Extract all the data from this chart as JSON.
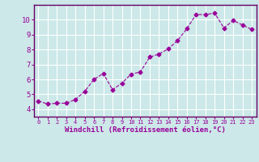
{
  "x": [
    0,
    1,
    2,
    3,
    4,
    5,
    6,
    7,
    8,
    9,
    10,
    11,
    12,
    13,
    14,
    15,
    16,
    17,
    18,
    19,
    20,
    21,
    22,
    23
  ],
  "y": [
    4.55,
    4.35,
    4.4,
    4.4,
    4.65,
    5.2,
    6.0,
    6.4,
    5.3,
    5.75,
    6.35,
    6.5,
    7.5,
    7.7,
    8.05,
    8.6,
    9.4,
    10.35,
    10.35,
    10.45,
    9.45,
    9.95,
    9.65,
    9.35
  ],
  "line_color": "#990099",
  "marker": "D",
  "markersize": 2.5,
  "linewidth": 0.8,
  "xlabel": "Windchill (Refroidissement éolien,°C)",
  "xlim": [
    -0.5,
    23.5
  ],
  "ylim": [
    3.5,
    11.0
  ],
  "yticks": [
    4,
    5,
    6,
    7,
    8,
    9,
    10
  ],
  "xticks": [
    0,
    1,
    2,
    3,
    4,
    5,
    6,
    7,
    8,
    9,
    10,
    11,
    12,
    13,
    14,
    15,
    16,
    17,
    18,
    19,
    20,
    21,
    22,
    23
  ],
  "bg_color": "#cce8e8",
  "grid_color": "#ffffff",
  "line_border_color": "#660066",
  "xlabel_color": "#990099",
  "tick_color": "#990099",
  "axis_color": "#660066",
  "fig_width": 3.2,
  "fig_height": 2.0,
  "dpi": 100
}
